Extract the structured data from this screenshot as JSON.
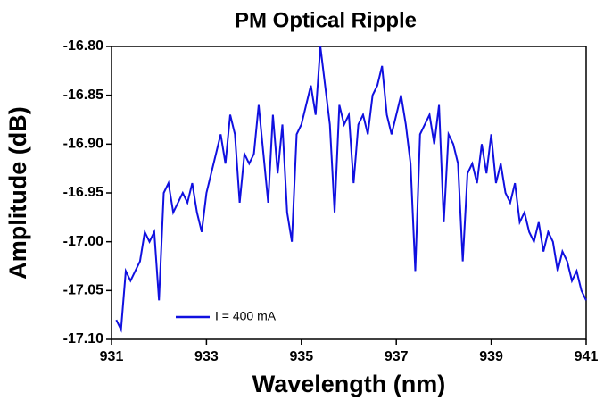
{
  "chart_data": {
    "type": "line",
    "title": "PM  Optical Ripple",
    "xlabel": "Wavelength (nm)",
    "ylabel": "Amplitude (dB)",
    "x": [
      931.1,
      931.2,
      931.3,
      931.4,
      931.5,
      931.6,
      931.7,
      931.8,
      931.9,
      932.0,
      932.1,
      932.2,
      932.3,
      932.4,
      932.5,
      932.6,
      932.7,
      932.8,
      932.9,
      933.0,
      933.1,
      933.2,
      933.3,
      933.4,
      933.5,
      933.6,
      933.7,
      933.8,
      933.9,
      934.0,
      934.1,
      934.2,
      934.3,
      934.4,
      934.5,
      934.6,
      934.7,
      934.8,
      934.9,
      935.0,
      935.1,
      935.2,
      935.3,
      935.4,
      935.5,
      935.6,
      935.7,
      935.8,
      935.9,
      936.0,
      936.1,
      936.2,
      936.3,
      936.4,
      936.5,
      936.6,
      936.7,
      936.8,
      936.9,
      937.0,
      937.1,
      937.2,
      937.3,
      937.4,
      937.5,
      937.6,
      937.7,
      937.8,
      937.9,
      938.0,
      938.1,
      938.2,
      938.3,
      938.4,
      938.5,
      938.6,
      938.7,
      938.8,
      938.9,
      939.0,
      939.1,
      939.2,
      939.3,
      939.4,
      939.5,
      939.6,
      939.7,
      939.8,
      939.9,
      940.0,
      940.1,
      940.2,
      940.3,
      940.4,
      940.5,
      940.6,
      940.7,
      940.8,
      940.9,
      941.0
    ],
    "series": [
      {
        "name": "I = 400 mA",
        "color": "#1010e0",
        "values": [
          -17.08,
          -17.09,
          -17.03,
          -17.04,
          -17.03,
          -17.02,
          -16.99,
          -17.0,
          -16.99,
          -17.06,
          -16.95,
          -16.94,
          -16.97,
          -16.96,
          -16.95,
          -16.96,
          -16.94,
          -16.97,
          -16.99,
          -16.95,
          -16.93,
          -16.91,
          -16.89,
          -16.92,
          -16.87,
          -16.89,
          -16.96,
          -16.91,
          -16.92,
          -16.91,
          -16.86,
          -16.91,
          -16.96,
          -16.87,
          -16.93,
          -16.88,
          -16.97,
          -17.0,
          -16.89,
          -16.88,
          -16.86,
          -16.84,
          -16.87,
          -16.8,
          -16.84,
          -16.88,
          -16.97,
          -16.86,
          -16.88,
          -16.87,
          -16.94,
          -16.88,
          -16.87,
          -16.89,
          -16.85,
          -16.84,
          -16.82,
          -16.87,
          -16.89,
          -16.87,
          -16.85,
          -16.88,
          -16.92,
          -17.03,
          -16.89,
          -16.88,
          -16.87,
          -16.9,
          -16.86,
          -16.98,
          -16.89,
          -16.9,
          -16.92,
          -17.02,
          -16.93,
          -16.92,
          -16.94,
          -16.9,
          -16.93,
          -16.89,
          -16.94,
          -16.92,
          -16.95,
          -16.96,
          -16.94,
          -16.98,
          -16.97,
          -16.99,
          -17.0,
          -16.98,
          -17.01,
          -16.99,
          -17.0,
          -17.03,
          -17.01,
          -17.02,
          -17.04,
          -17.03,
          -17.05,
          -17.06
        ]
      }
    ],
    "xlim": [
      931,
      941
    ],
    "xticks": [
      931,
      933,
      935,
      937,
      939,
      941
    ],
    "ylim": [
      -17.1,
      -16.8
    ],
    "yticks": [
      {
        "value": -16.8,
        "label": "-16.80"
      },
      -16.85,
      {
        "value": -16.9,
        "label": "-16.90"
      },
      -16.95,
      {
        "value": -17.0,
        "label": "-17.00"
      },
      -17.05,
      {
        "value": -17.1,
        "label": "-17.10"
      }
    ],
    "legend": "lower left"
  }
}
